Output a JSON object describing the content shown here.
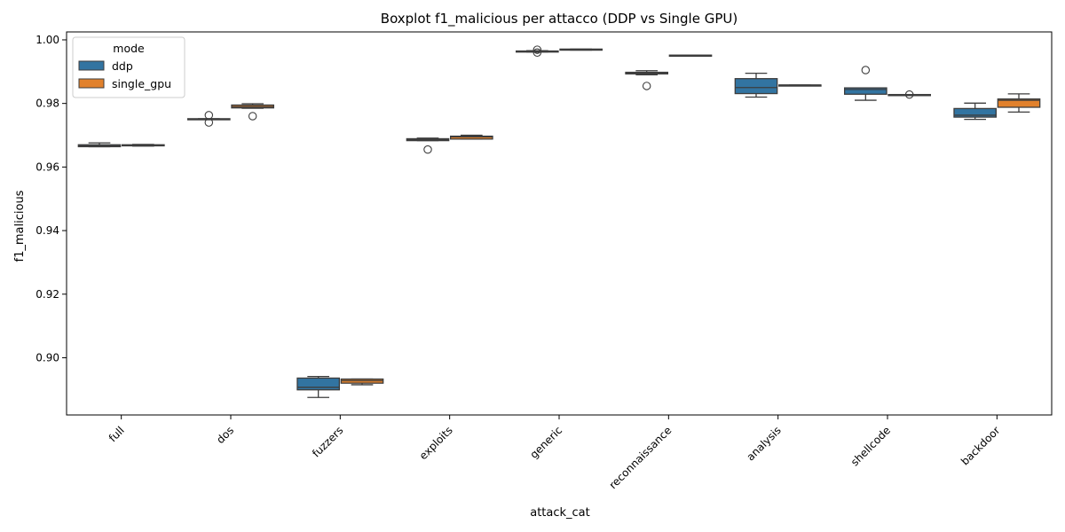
{
  "chart_data": {
    "type": "boxplot",
    "title": "Boxplot f1_malicious per attacco (DDP vs Single GPU)",
    "xlabel": "attack_cat",
    "ylabel": "f1_malicious",
    "ylim": [
      0.882,
      1.0025
    ],
    "yticks": [
      0.9,
      0.92,
      0.94,
      0.96,
      0.98,
      1.0
    ],
    "ytick_labels": [
      "0.90",
      "0.92",
      "0.94",
      "0.96",
      "0.98",
      "1.00"
    ],
    "grid": false,
    "legend": {
      "title": "mode",
      "placement": "top-left"
    },
    "categories": [
      "full",
      "dos",
      "fuzzers",
      "exploits",
      "generic",
      "reconnaissance",
      "analysis",
      "shellcode",
      "backdoor"
    ],
    "series": [
      {
        "name": "ddp",
        "color": "#3274a1",
        "boxes": [
          {
            "whislo": 0.9664,
            "q1": 0.9664,
            "med": 0.9667,
            "q3": 0.967,
            "whishi": 0.9676,
            "fliers": []
          },
          {
            "whislo": 0.975,
            "q1": 0.975,
            "med": 0.9751,
            "q3": 0.9752,
            "whishi": 0.9752,
            "fliers": [
              0.9763,
              0.974
            ]
          },
          {
            "whislo": 0.8875,
            "q1": 0.8899,
            "med": 0.8907,
            "q3": 0.8936,
            "whishi": 0.8941,
            "fliers": []
          },
          {
            "whislo": 0.9683,
            "q1": 0.9683,
            "med": 0.9686,
            "q3": 0.9689,
            "whishi": 0.9691,
            "fliers": [
              0.9655
            ]
          },
          {
            "whislo": 0.9962,
            "q1": 0.9962,
            "med": 0.9963,
            "q3": 0.9965,
            "whishi": 0.9966,
            "fliers": [
              0.9969,
              0.996
            ]
          },
          {
            "whislo": 0.989,
            "q1": 0.9893,
            "med": 0.9895,
            "q3": 0.9898,
            "whishi": 0.9903,
            "fliers": [
              0.9855
            ]
          },
          {
            "whislo": 0.982,
            "q1": 0.9831,
            "med": 0.985,
            "q3": 0.9878,
            "whishi": 0.9895,
            "fliers": []
          },
          {
            "whislo": 0.981,
            "q1": 0.9829,
            "med": 0.9844,
            "q3": 0.9849,
            "whishi": 0.9849,
            "fliers": [
              0.9905
            ]
          },
          {
            "whislo": 0.975,
            "q1": 0.9757,
            "med": 0.9763,
            "q3": 0.9784,
            "whishi": 0.9801,
            "fliers": []
          }
        ]
      },
      {
        "name": "single_gpu",
        "color": "#e1812c",
        "boxes": [
          {
            "whislo": 0.9666,
            "q1": 0.9667,
            "med": 0.9668,
            "q3": 0.967,
            "whishi": 0.9671,
            "fliers": []
          },
          {
            "whislo": 0.9785,
            "q1": 0.9786,
            "med": 0.979,
            "q3": 0.9795,
            "whishi": 0.9799,
            "fliers": [
              0.976
            ]
          },
          {
            "whislo": 0.8915,
            "q1": 0.892,
            "med": 0.8928,
            "q3": 0.8933,
            "whishi": 0.8933,
            "fliers": []
          },
          {
            "whislo": 0.9688,
            "q1": 0.9688,
            "med": 0.9695,
            "q3": 0.9697,
            "whishi": 0.97,
            "fliers": []
          },
          {
            "whislo": 0.9968,
            "q1": 0.9969,
            "med": 0.997,
            "q3": 0.9971,
            "whishi": 0.9971,
            "fliers": []
          },
          {
            "whislo": 0.995,
            "q1": 0.995,
            "med": 0.9951,
            "q3": 0.9952,
            "whishi": 0.9952,
            "fliers": []
          },
          {
            "whislo": 0.9857,
            "q1": 0.9857,
            "med": 0.9858,
            "q3": 0.9858,
            "whishi": 0.9858,
            "fliers": []
          },
          {
            "whislo": 0.9827,
            "q1": 0.9827,
            "med": 0.9828,
            "q3": 0.9828,
            "whishi": 0.9828,
            "fliers": [
              0.9828
            ]
          },
          {
            "whislo": 0.9773,
            "q1": 0.9788,
            "med": 0.981,
            "q3": 0.9814,
            "whishi": 0.983,
            "fliers": []
          }
        ]
      }
    ]
  }
}
